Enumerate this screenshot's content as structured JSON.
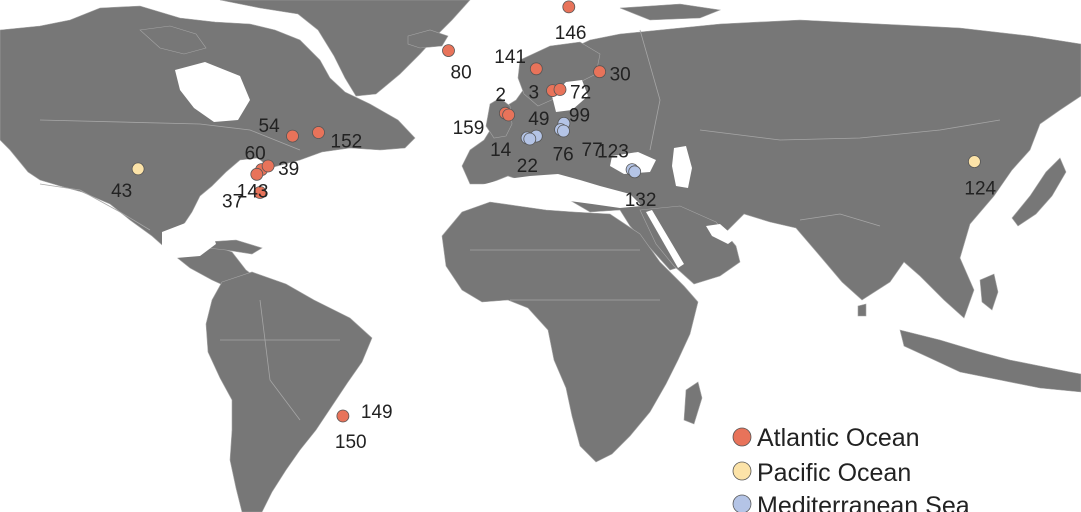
{
  "colors": {
    "land": "#777777",
    "border": "#a6a6a6",
    "water": "#ffffff",
    "point_stroke": "#555555"
  },
  "legend": {
    "items": [
      {
        "key": "atlantic",
        "label": "Atlantic Ocean",
        "color": "#e8735a"
      },
      {
        "key": "pacific",
        "label": "Pacific Ocean",
        "color": "#fce3a8"
      },
      {
        "key": "mediterranean",
        "label": "Mediterranean Sea",
        "color": "#b4c4e6"
      }
    ]
  },
  "sites": [
    {
      "id": "80",
      "group": "atlantic",
      "lat": 65.5,
      "lon": -22.0
    },
    {
      "id": "146",
      "group": "atlantic",
      "lat": 77.5,
      "lon": 15.0
    },
    {
      "id": "141",
      "group": "atlantic",
      "lat": 60.5,
      "lon": 5.0
    },
    {
      "id": "30",
      "group": "atlantic",
      "lat": 59.7,
      "lon": 24.5
    },
    {
      "id": "3",
      "group": "atlantic",
      "lat": 54.5,
      "lon": 10.0
    },
    {
      "id": "72",
      "group": "atlantic",
      "lat": 54.8,
      "lon": 12.3
    },
    {
      "id": "2",
      "group": "atlantic",
      "lat": 48.3,
      "lon": -4.5
    },
    {
      "id": "159",
      "group": "atlantic",
      "lat": 47.8,
      "lon": -3.5
    },
    {
      "id": "54",
      "group": "atlantic",
      "lat": 42.0,
      "lon": -70.0
    },
    {
      "id": "152",
      "group": "atlantic",
      "lat": 43.0,
      "lon": -62.0
    },
    {
      "id": "60",
      "group": "atlantic",
      "lat": 32.8,
      "lon": -79.5
    },
    {
      "id": "39",
      "group": "atlantic",
      "lat": 33.8,
      "lon": -77.5
    },
    {
      "id": "143",
      "group": "atlantic",
      "lat": 31.5,
      "lon": -81.0
    },
    {
      "id": "37",
      "group": "atlantic",
      "lat": 26.5,
      "lon": -80.0
    },
    {
      "id": "149",
      "group": "atlantic",
      "lat": -34.9,
      "lon": -54.5
    },
    {
      "id": "43",
      "group": "pacific",
      "lat": 33.0,
      "lon": -117.5
    },
    {
      "id": "124",
      "group": "pacific",
      "lat": 35.0,
      "lon": 139.8
    },
    {
      "id": "49",
      "group": "mediterranean",
      "lat": 42.0,
      "lon": 5.0
    },
    {
      "id": "99",
      "group": "mediterranean",
      "lat": 45.5,
      "lon": 13.5
    },
    {
      "id": "14",
      "group": "mediterranean",
      "lat": 41.5,
      "lon": 2.2
    },
    {
      "id": "22",
      "group": "mediterranean",
      "lat": 41.2,
      "lon": 3.0
    },
    {
      "id": "76",
      "group": "mediterranean",
      "lat": 43.8,
      "lon": 12.5
    },
    {
      "id": "77",
      "group": "mediterranean",
      "lat": 43.4,
      "lon": 13.4
    },
    {
      "id": "123",
      "group": "mediterranean",
      "lat": 32.8,
      "lon": 34.5
    },
    {
      "id": "132",
      "group": "mediterranean",
      "lat": 32.2,
      "lon": 35.3
    }
  ],
  "extra_labels": [
    "150"
  ]
}
